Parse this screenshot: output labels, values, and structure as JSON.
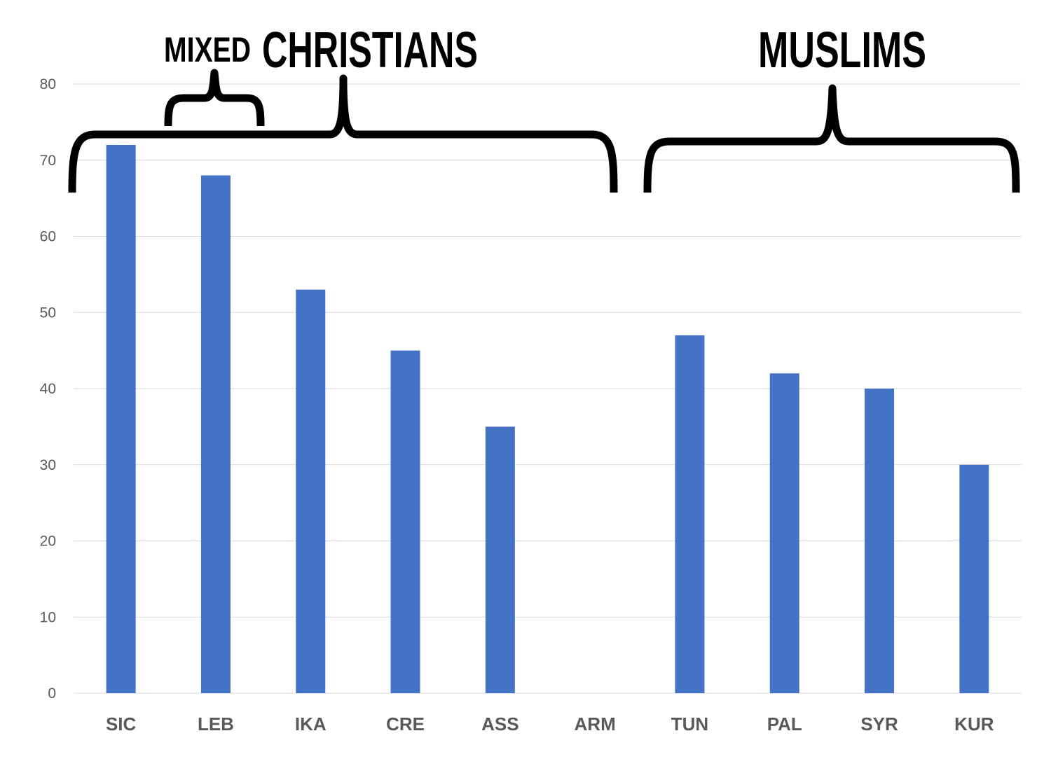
{
  "chart_data": {
    "type": "bar",
    "title": "",
    "xlabel": "",
    "ylabel": "",
    "categories": [
      "SIC",
      "LEB",
      "IKA",
      "CRE",
      "ASS",
      "ARM",
      "TUN",
      "PAL",
      "SYR",
      "KUR"
    ],
    "values": [
      72,
      68,
      53,
      45,
      35,
      0,
      47,
      42,
      40,
      30
    ],
    "ylim": [
      0,
      80
    ],
    "yticks": [
      "0",
      "10",
      "20",
      "30",
      "40",
      "50",
      "60",
      "70",
      "80"
    ],
    "grid": true,
    "legend": "none",
    "bar_color": "#4472c4",
    "annotations": {
      "mixed": "MIXED",
      "christians": "CHRISTIANS",
      "muslims": "MUSLIMS"
    }
  }
}
